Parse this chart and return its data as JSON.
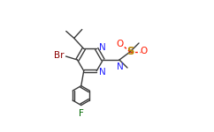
{
  "bg_color": "#ffffff",
  "bond_color": "#3a3a3a",
  "colors": {
    "N": "#2020ff",
    "O": "#ff1a00",
    "F": "#006600",
    "Br": "#8b0000",
    "S": "#b8860b",
    "C": "#3a3a3a"
  },
  "layout": {
    "xlim": [
      0,
      2.42
    ],
    "ylim": [
      0,
      1.5
    ]
  }
}
